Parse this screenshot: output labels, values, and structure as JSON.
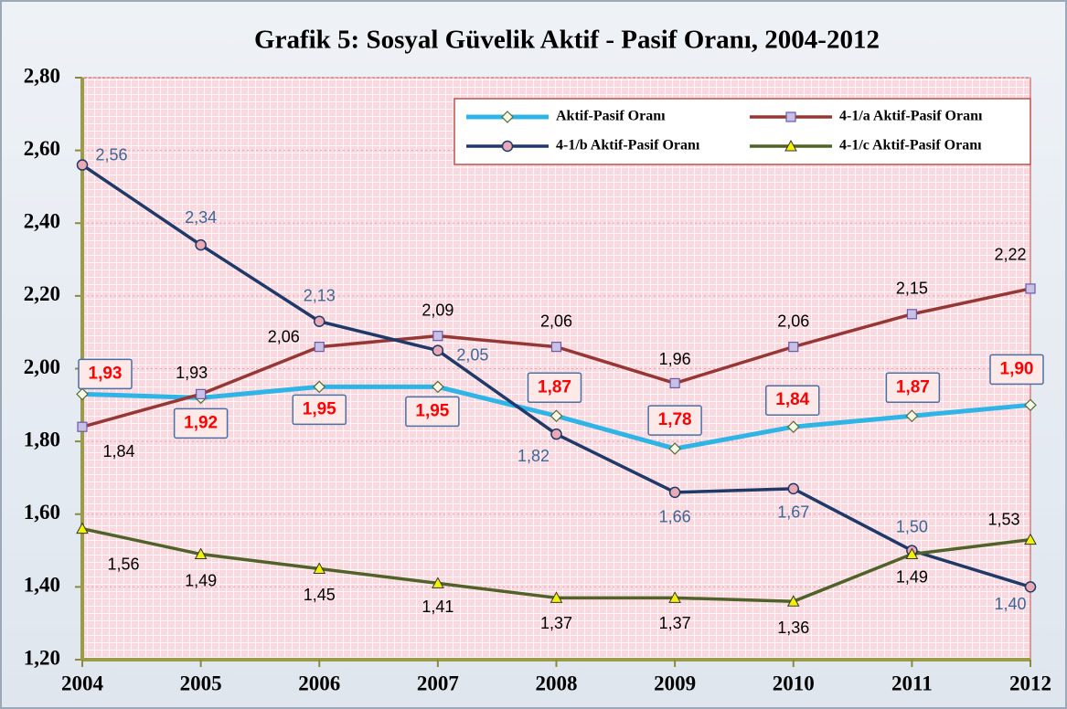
{
  "chart_data": {
    "type": "line",
    "title": "Grafik 5: Sosyal Güvelik  Aktif - Pasif Oranı, 2004-2012",
    "categories": [
      "2004",
      "2005",
      "2006",
      "2007",
      "2008",
      "2009",
      "2010",
      "2011",
      "2012"
    ],
    "ylim": [
      1.2,
      2.8
    ],
    "yticks": [
      {
        "value": 1.2,
        "label": "1,20"
      },
      {
        "value": 1.4,
        "label": "1,40"
      },
      {
        "value": 1.6,
        "label": "1,60"
      },
      {
        "value": 1.8,
        "label": "1,80"
      },
      {
        "value": 2.0,
        "label": "2,00"
      },
      {
        "value": 2.2,
        "label": "2,20"
      },
      {
        "value": 2.4,
        "label": "2,40"
      },
      {
        "value": 2.6,
        "label": "2,60"
      },
      {
        "value": 2.8,
        "label": "2,80"
      }
    ],
    "grid": true,
    "legend": "top right",
    "series": [
      {
        "name": "Aktif-Pasif Oranı",
        "color": "#2fb4e6",
        "marker": "diamond",
        "values": [
          1.93,
          1.92,
          1.95,
          1.95,
          1.87,
          1.78,
          1.84,
          1.87,
          1.9
        ],
        "value_labels": [
          "1,93",
          "1,92",
          "1,95",
          "1,95",
          "1,87",
          "1,78",
          "1,84",
          "1,87",
          "1,90"
        ]
      },
      {
        "name": "4-1/a Aktif-Pasif Oranı",
        "color": "#953735",
        "marker": "square",
        "values": [
          1.84,
          1.93,
          2.06,
          2.09,
          2.06,
          1.96,
          2.06,
          2.15,
          2.22
        ],
        "value_labels": [
          "1,84",
          "1,93",
          "2,06",
          "2,09",
          "2,06",
          "1,96",
          "2,06",
          "2,15",
          "2,22"
        ]
      },
      {
        "name": "4-1/b Aktif-Pasif Oranı",
        "color": "#1f3a68",
        "marker": "circle",
        "values": [
          2.56,
          2.34,
          2.13,
          2.05,
          1.82,
          1.66,
          1.67,
          1.5,
          1.4
        ],
        "value_labels": [
          "2,56",
          "2,34",
          "2,13",
          "2,05",
          "1,82",
          "1,66",
          "1,67",
          "1,50",
          "1,40"
        ]
      },
      {
        "name": "4-1/c Aktif-Pasif Oranı",
        "color": "#4f6228",
        "marker": "triangle",
        "values": [
          1.56,
          1.49,
          1.45,
          1.41,
          1.37,
          1.37,
          1.36,
          1.49,
          1.53
        ],
        "value_labels": [
          "1,56",
          "1,49",
          "1,45",
          "1,41",
          "1,37",
          "1,37",
          "1,36",
          "1,49",
          "1,53"
        ]
      }
    ]
  }
}
